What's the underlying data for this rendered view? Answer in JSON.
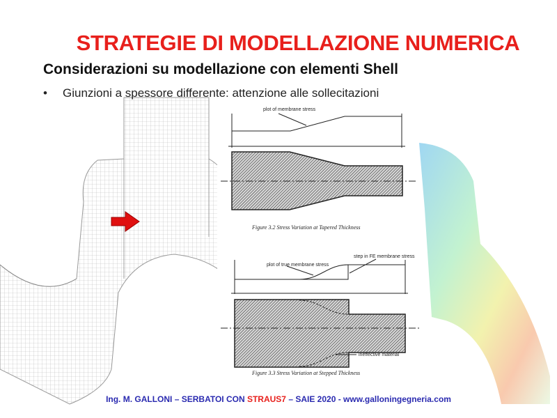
{
  "slide": {
    "title": "STRATEGIE DI MODELLAZIONE NUMERICA",
    "subtitle": "Considerazioni su modellazione con elementi Shell",
    "bullet": "Giunzioni a spessore differente: attenzione alle sollecitazioni",
    "bullet_marker": "•"
  },
  "figure_a": {
    "label": "plot of membrane stress",
    "caption": "Figure 3.2  Stress Variation at Tapered Thickness"
  },
  "figure_b": {
    "label_true": "plot of true membrane stress",
    "label_step": "step in FE membrane stress",
    "label_ineffective": "ineffective material",
    "caption": "Figure 3.3  Stress Variation at Stepped Thickness"
  },
  "footer": {
    "left": "Ing. M. GALLONI – SERBATOI  CON ",
    "brand": "STRAUS7",
    "right": " – SAIE 2020 - www.galloningegneria.com"
  },
  "colors": {
    "title": "#e8201c",
    "footer": "#2a2ab0",
    "arrow": "#e01010"
  }
}
